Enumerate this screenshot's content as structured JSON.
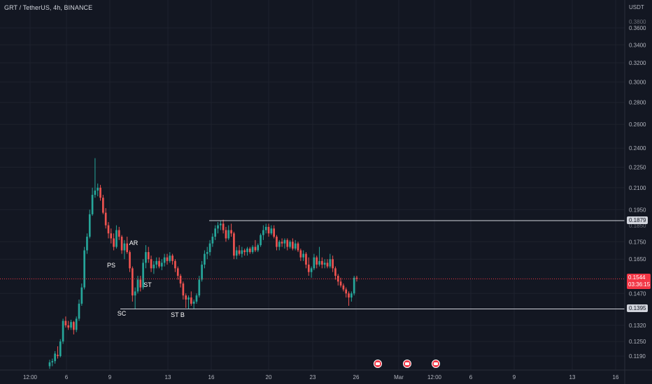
{
  "header": {
    "symbol_title": "GRT / TetherUS, 4h, BINANCE",
    "currency": "USDT"
  },
  "price_axis": {
    "ticks": [
      "0.3600",
      "0.3400",
      "0.3200",
      "0.3000",
      "0.2800",
      "0.2600",
      "0.2400",
      "0.2250",
      "0.2100",
      "0.1950",
      "0.1750",
      "0.1650",
      "0.1470",
      "0.1320",
      "0.1250",
      "0.1190"
    ],
    "partial_ticks": [
      "0.3800",
      "0.1850"
    ],
    "log_scale": true
  },
  "time_axis": {
    "ticks": [
      "12:00",
      "6",
      "9",
      "13",
      "16",
      "20",
      "23",
      "26",
      "Mar",
      "12:00",
      "6",
      "9",
      "13",
      "16"
    ]
  },
  "levels": {
    "resistance": {
      "value": 0.1879,
      "label": "0.1879"
    },
    "support": {
      "value": 0.1395,
      "label": "0.1395"
    },
    "last_price": {
      "value": 0.1544,
      "label": "0.1544",
      "countdown": "03:36:15"
    }
  },
  "annotations": [
    {
      "text": "PS",
      "price": 0.164
    },
    {
      "text": "AR",
      "price": 0.1755
    },
    {
      "text": "ST",
      "price": 0.15
    },
    {
      "text": "SC",
      "price": 0.136
    },
    {
      "text": "ST B",
      "price": 0.1355
    }
  ],
  "event_icons": [
    "flag-icon",
    "flag-icon",
    "flag-icon"
  ],
  "colors": {
    "background": "#131722",
    "up": "#26a69a",
    "down": "#ef5350",
    "grid": "#1e222d",
    "level_line": "#d1d4dc",
    "last_line": "#f23645",
    "axis_text": "#b2b5be"
  },
  "chart_data": {
    "type": "candlestick",
    "title": "GRT / TetherUS, 4h, BINANCE",
    "ylabel": "USDT",
    "ylim": [
      0.115,
      0.385
    ],
    "yscale": "log",
    "series": [
      {
        "name": "GRT / TetherUS",
        "candles": [
          [
            0.115,
            0.1175,
            0.114,
            0.1165
          ],
          [
            0.1165,
            0.118,
            0.115,
            0.117
          ],
          [
            0.117,
            0.121,
            0.116,
            0.12
          ],
          [
            0.1195,
            0.123,
            0.118,
            0.119
          ],
          [
            0.119,
            0.126,
            0.1185,
            0.125
          ],
          [
            0.125,
            0.135,
            0.124,
            0.134
          ],
          [
            0.134,
            0.136,
            0.131,
            0.132
          ],
          [
            0.132,
            0.134,
            0.13,
            0.131
          ],
          [
            0.131,
            0.1345,
            0.13,
            0.1335
          ],
          [
            0.1335,
            0.134,
            0.128,
            0.13
          ],
          [
            0.13,
            0.136,
            0.129,
            0.135
          ],
          [
            0.135,
            0.144,
            0.134,
            0.142
          ],
          [
            0.142,
            0.152,
            0.141,
            0.15
          ],
          [
            0.15,
            0.172,
            0.149,
            0.17
          ],
          [
            0.17,
            0.18,
            0.168,
            0.178
          ],
          [
            0.178,
            0.195,
            0.177,
            0.192
          ],
          [
            0.192,
            0.21,
            0.191,
            0.205
          ],
          [
            0.205,
            0.232,
            0.203,
            0.208
          ],
          [
            0.208,
            0.213,
            0.204,
            0.21
          ],
          [
            0.21,
            0.212,
            0.201,
            0.203
          ],
          [
            0.203,
            0.205,
            0.192,
            0.193
          ],
          [
            0.193,
            0.196,
            0.183,
            0.185
          ],
          [
            0.185,
            0.187,
            0.177,
            0.18
          ],
          [
            0.18,
            0.183,
            0.174,
            0.177
          ],
          [
            0.177,
            0.18,
            0.17,
            0.172
          ],
          [
            0.172,
            0.185,
            0.171,
            0.182
          ],
          [
            0.182,
            0.184,
            0.176,
            0.178
          ],
          [
            0.178,
            0.179,
            0.168,
            0.17
          ],
          [
            0.17,
            0.176,
            0.165,
            0.174
          ],
          [
            0.174,
            0.178,
            0.168,
            0.169
          ],
          [
            0.169,
            0.17,
            0.158,
            0.16
          ],
          [
            0.16,
            0.161,
            0.143,
            0.146
          ],
          [
            0.146,
            0.15,
            0.1395,
            0.148
          ],
          [
            0.148,
            0.156,
            0.147,
            0.154
          ],
          [
            0.154,
            0.156,
            0.148,
            0.15
          ],
          [
            0.15,
            0.165,
            0.149,
            0.163
          ],
          [
            0.163,
            0.173,
            0.16,
            0.169
          ],
          [
            0.169,
            0.172,
            0.163,
            0.165
          ],
          [
            0.165,
            0.167,
            0.158,
            0.16
          ],
          [
            0.16,
            0.164,
            0.157,
            0.162
          ],
          [
            0.162,
            0.166,
            0.16,
            0.164
          ],
          [
            0.164,
            0.166,
            0.16,
            0.161
          ],
          [
            0.161,
            0.165,
            0.159,
            0.163
          ],
          [
            0.163,
            0.168,
            0.161,
            0.166
          ],
          [
            0.166,
            0.168,
            0.162,
            0.164
          ],
          [
            0.164,
            0.169,
            0.163,
            0.167
          ],
          [
            0.167,
            0.168,
            0.162,
            0.164
          ],
          [
            0.164,
            0.165,
            0.158,
            0.16
          ],
          [
            0.16,
            0.161,
            0.154,
            0.156
          ],
          [
            0.156,
            0.157,
            0.15,
            0.152
          ],
          [
            0.152,
            0.153,
            0.144,
            0.146
          ],
          [
            0.146,
            0.147,
            0.14,
            0.144
          ],
          [
            0.144,
            0.146,
            0.1395,
            0.145
          ],
          [
            0.145,
            0.148,
            0.141,
            0.142
          ],
          [
            0.142,
            0.144,
            0.1395,
            0.143
          ],
          [
            0.143,
            0.147,
            0.142,
            0.146
          ],
          [
            0.146,
            0.156,
            0.145,
            0.154
          ],
          [
            0.154,
            0.164,
            0.153,
            0.162
          ],
          [
            0.162,
            0.17,
            0.16,
            0.168
          ],
          [
            0.168,
            0.172,
            0.165,
            0.169
          ],
          [
            0.169,
            0.176,
            0.167,
            0.174
          ],
          [
            0.174,
            0.18,
            0.172,
            0.178
          ],
          [
            0.178,
            0.185,
            0.176,
            0.183
          ],
          [
            0.183,
            0.187,
            0.18,
            0.185
          ],
          [
            0.185,
            0.188,
            0.182,
            0.186
          ],
          [
            0.186,
            0.1885,
            0.18,
            0.182
          ],
          [
            0.182,
            0.184,
            0.175,
            0.177
          ],
          [
            0.177,
            0.185,
            0.176,
            0.182
          ],
          [
            0.182,
            0.186,
            0.178,
            0.18
          ],
          [
            0.18,
            0.181,
            0.165,
            0.167
          ],
          [
            0.167,
            0.172,
            0.165,
            0.17
          ],
          [
            0.17,
            0.173,
            0.167,
            0.168
          ],
          [
            0.168,
            0.172,
            0.166,
            0.17
          ],
          [
            0.17,
            0.171,
            0.167,
            0.169
          ],
          [
            0.169,
            0.172,
            0.167,
            0.171
          ],
          [
            0.171,
            0.172,
            0.168,
            0.169
          ],
          [
            0.169,
            0.173,
            0.168,
            0.172
          ],
          [
            0.172,
            0.176,
            0.169,
            0.17
          ],
          [
            0.17,
            0.174,
            0.169,
            0.173
          ],
          [
            0.173,
            0.18,
            0.172,
            0.179
          ],
          [
            0.179,
            0.185,
            0.176,
            0.182
          ],
          [
            0.182,
            0.186,
            0.18,
            0.184
          ],
          [
            0.184,
            0.186,
            0.178,
            0.18
          ],
          [
            0.18,
            0.185,
            0.179,
            0.183
          ],
          [
            0.183,
            0.185,
            0.177,
            0.178
          ],
          [
            0.178,
            0.179,
            0.17,
            0.172
          ],
          [
            0.172,
            0.176,
            0.17,
            0.175
          ],
          [
            0.175,
            0.177,
            0.172,
            0.174
          ],
          [
            0.174,
            0.177,
            0.171,
            0.176
          ],
          [
            0.176,
            0.177,
            0.17,
            0.172
          ],
          [
            0.172,
            0.176,
            0.171,
            0.175
          ],
          [
            0.175,
            0.177,
            0.17,
            0.171
          ],
          [
            0.171,
            0.176,
            0.17,
            0.174
          ],
          [
            0.174,
            0.175,
            0.169,
            0.17
          ],
          [
            0.17,
            0.171,
            0.164,
            0.166
          ],
          [
            0.166,
            0.17,
            0.164,
            0.168
          ],
          [
            0.168,
            0.169,
            0.16,
            0.162
          ],
          [
            0.162,
            0.166,
            0.156,
            0.158
          ],
          [
            0.158,
            0.161,
            0.155,
            0.16
          ],
          [
            0.16,
            0.168,
            0.159,
            0.166
          ],
          [
            0.166,
            0.167,
            0.16,
            0.162
          ],
          [
            0.162,
            0.172,
            0.161,
            0.164
          ],
          [
            0.164,
            0.166,
            0.16,
            0.162
          ],
          [
            0.162,
            0.165,
            0.16,
            0.163
          ],
          [
            0.163,
            0.165,
            0.16,
            0.161
          ],
          [
            0.161,
            0.168,
            0.16,
            0.165
          ],
          [
            0.165,
            0.167,
            0.158,
            0.16
          ],
          [
            0.16,
            0.161,
            0.154,
            0.156
          ],
          [
            0.156,
            0.157,
            0.151,
            0.153
          ],
          [
            0.153,
            0.155,
            0.15,
            0.151
          ],
          [
            0.151,
            0.152,
            0.148,
            0.149
          ],
          [
            0.149,
            0.15,
            0.145,
            0.147
          ],
          [
            0.147,
            0.148,
            0.141,
            0.145
          ],
          [
            0.145,
            0.148,
            0.143,
            0.147
          ],
          [
            0.147,
            0.156,
            0.146,
            0.155
          ],
          [
            0.155,
            0.156,
            0.153,
            0.1544
          ]
        ]
      }
    ]
  }
}
